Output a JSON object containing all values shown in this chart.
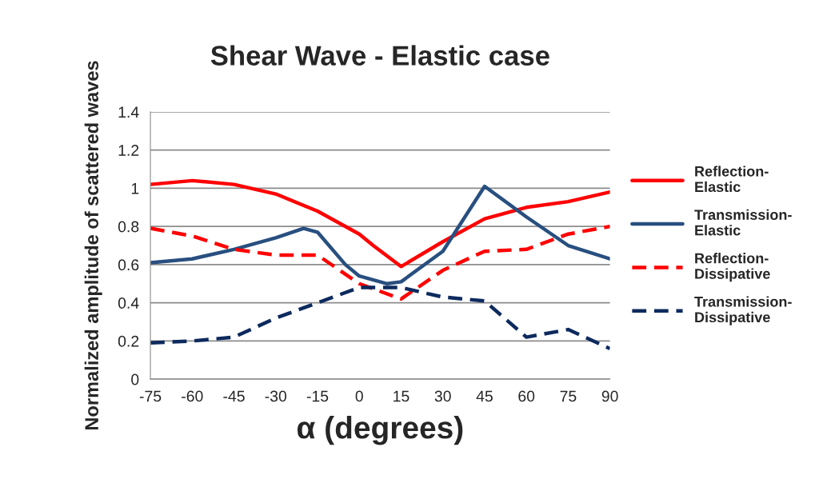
{
  "chart_data": {
    "type": "line",
    "title": "Shear Wave - Elastic case",
    "xlabel": "α (degrees)",
    "ylabel": "Normalized amplitude of scattered waves",
    "xlim": [
      -75,
      90
    ],
    "xticks": [
      -75,
      -60,
      -45,
      -30,
      -15,
      0,
      15,
      30,
      45,
      60,
      75,
      90
    ],
    "ylim": [
      0,
      1.4
    ],
    "yticks": [
      0,
      0.2,
      0.4,
      0.6,
      0.8,
      1,
      1.2,
      1.4
    ],
    "grid": "y",
    "legend": "right",
    "series": [
      {
        "name": "Reflection-Elastic",
        "color": "#ff0000",
        "line_style": "solid",
        "x": [
          -75,
          -60,
          -45,
          -30,
          -15,
          0,
          5,
          15,
          30,
          45,
          60,
          75,
          90
        ],
        "values": [
          1.02,
          1.04,
          1.02,
          0.97,
          0.88,
          0.76,
          0.7,
          0.59,
          0.72,
          0.84,
          0.9,
          0.93,
          0.98
        ]
      },
      {
        "name": "Transmission-Elastic",
        "color": "#284f7f",
        "line_style": "solid",
        "x": [
          -75,
          -60,
          -45,
          -30,
          -20,
          -15,
          -5,
          0,
          10,
          15,
          30,
          45,
          60,
          75,
          90
        ],
        "values": [
          0.61,
          0.63,
          0.68,
          0.74,
          0.79,
          0.77,
          0.6,
          0.54,
          0.5,
          0.51,
          0.67,
          1.01,
          0.85,
          0.7,
          0.63
        ]
      },
      {
        "name": "Reflection-Dissipative",
        "color": "#ff0000",
        "line_style": "dashed",
        "x": [
          -75,
          -60,
          -45,
          -30,
          -15,
          0,
          15,
          30,
          45,
          60,
          75,
          90
        ],
        "values": [
          0.79,
          0.75,
          0.68,
          0.65,
          0.65,
          0.5,
          0.42,
          0.57,
          0.67,
          0.68,
          0.76,
          0.8
        ]
      },
      {
        "name": "Transmission-Dissipative",
        "color": "#0d2a5e",
        "line_style": "dashed",
        "x": [
          -75,
          -60,
          -45,
          -30,
          -15,
          0,
          15,
          30,
          45,
          60,
          75,
          90
        ],
        "values": [
          0.19,
          0.2,
          0.22,
          0.32,
          0.4,
          0.48,
          0.48,
          0.43,
          0.41,
          0.22,
          0.26,
          0.16
        ]
      }
    ]
  }
}
